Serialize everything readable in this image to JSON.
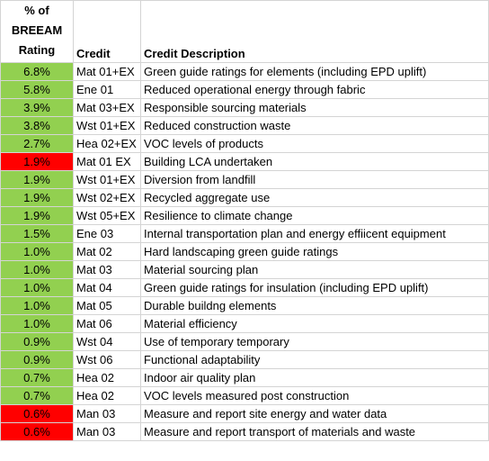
{
  "colors": {
    "green": "#92d050",
    "red": "#ff0000",
    "grid": "#d4d4d4"
  },
  "headers": {
    "rating_line1": "% of",
    "rating_line2": "BREEAM",
    "rating_line3": "Rating",
    "credit": "Credit",
    "description": "Credit Description"
  },
  "rows": [
    {
      "rating": "6.8%",
      "credit": "Mat 01+EX",
      "description": "Green guide ratings for elements (including EPD uplift)",
      "status": "green"
    },
    {
      "rating": "5.8%",
      "credit": "Ene 01",
      "description": "Reduced operational energy through fabric",
      "status": "green"
    },
    {
      "rating": "3.9%",
      "credit": "Mat 03+EX",
      "description": "Responsible sourcing materials",
      "status": "green"
    },
    {
      "rating": "3.8%",
      "credit": "Wst 01+EX",
      "description": "Reduced construction waste",
      "status": "green"
    },
    {
      "rating": "2.7%",
      "credit": "Hea 02+EX",
      "description": "VOC levels of products",
      "status": "green"
    },
    {
      "rating": "1.9%",
      "credit": "Mat 01 EX",
      "description": "Building LCA undertaken",
      "status": "red"
    },
    {
      "rating": "1.9%",
      "credit": "Wst 01+EX",
      "description": "Diversion from landfill",
      "status": "green"
    },
    {
      "rating": "1.9%",
      "credit": "Wst 02+EX",
      "description": "Recycled aggregate use",
      "status": "green"
    },
    {
      "rating": "1.9%",
      "credit": "Wst 05+EX",
      "description": "Resilience to climate change",
      "status": "green"
    },
    {
      "rating": "1.5%",
      "credit": "Ene 03",
      "description": "Internal transportation plan and energy effiicent equipment",
      "status": "green"
    },
    {
      "rating": "1.0%",
      "credit": "Mat 02",
      "description": "Hard landscaping green guide ratings",
      "status": "green"
    },
    {
      "rating": "1.0%",
      "credit": "Mat 03",
      "description": "Material sourcing plan",
      "status": "green"
    },
    {
      "rating": "1.0%",
      "credit": "Mat 04",
      "description": "Green guide ratings for insulation (including EPD uplift)",
      "status": "green"
    },
    {
      "rating": "1.0%",
      "credit": "Mat 05",
      "description": "Durable buildng elements",
      "status": "green"
    },
    {
      "rating": "1.0%",
      "credit": "Mat 06",
      "description": "Material efficiency",
      "status": "green"
    },
    {
      "rating": "0.9%",
      "credit": "Wst 04",
      "description": "Use of temporary temporary",
      "status": "green"
    },
    {
      "rating": "0.9%",
      "credit": "Wst 06",
      "description": "Functional adaptability",
      "status": "green"
    },
    {
      "rating": "0.7%",
      "credit": "Hea 02",
      "description": "Indoor air quality plan",
      "status": "green"
    },
    {
      "rating": "0.7%",
      "credit": "Hea 02",
      "description": "VOC levels measured post construction",
      "status": "green"
    },
    {
      "rating": "0.6%",
      "credit": "Man 03",
      "description": "Measure and report site energy and water data",
      "status": "red"
    },
    {
      "rating": "0.6%",
      "credit": "Man 03",
      "description": "Measure and report transport of materials and waste",
      "status": "red"
    }
  ]
}
